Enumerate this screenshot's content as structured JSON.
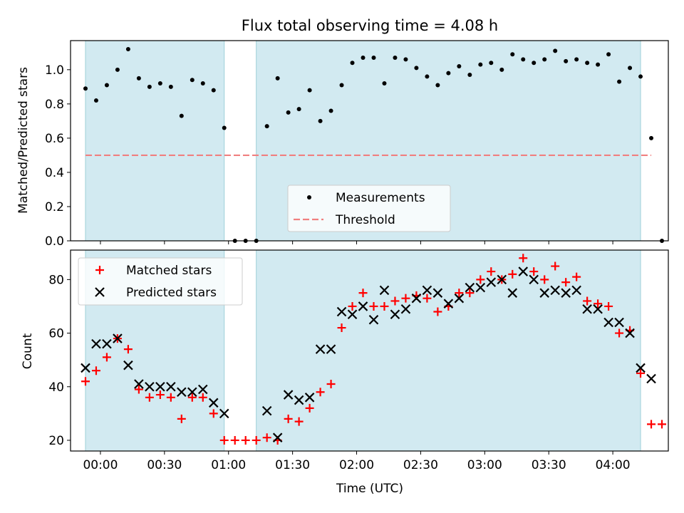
{
  "chart_data": [
    {
      "type": "scatter",
      "title": "Flux total observing time = 4.08 h",
      "xlabel": "",
      "ylabel": "Matched/Predicted stars",
      "xlim": [
        "23:46",
        "04:26"
      ],
      "ylim": [
        0,
        1.17
      ],
      "x_ticks": [
        "00:00",
        "00:30",
        "01:00",
        "01:30",
        "02:00",
        "02:30",
        "03:00",
        "03:30",
        "04:00"
      ],
      "y_ticks": [
        "0.0",
        "0.2",
        "0.4",
        "0.6",
        "0.8",
        "1.0"
      ],
      "shaded_intervals": [
        [
          "23:53",
          "00:58"
        ],
        [
          "01:13",
          "04:13"
        ]
      ],
      "shade_color": "#add8e6",
      "legend": {
        "position": "lower-center",
        "entries": [
          "Measurements",
          "Threshold"
        ]
      },
      "series": [
        {
          "name": "Measurements",
          "marker": "dot",
          "color": "#000000",
          "points": [
            [
              "23:53",
              0.89
            ],
            [
              "23:58",
              0.82
            ],
            [
              "00:03",
              0.91
            ],
            [
              "00:08",
              1.0
            ],
            [
              "00:13",
              1.12
            ],
            [
              "00:18",
              0.95
            ],
            [
              "00:23",
              0.9
            ],
            [
              "00:28",
              0.92
            ],
            [
              "00:33",
              0.9
            ],
            [
              "00:38",
              0.73
            ],
            [
              "00:43",
              0.94
            ],
            [
              "00:48",
              0.92
            ],
            [
              "00:53",
              0.88
            ],
            [
              "00:58",
              0.66
            ],
            [
              "01:03",
              0.0
            ],
            [
              "01:08",
              0.0
            ],
            [
              "01:13",
              0.0
            ],
            [
              "01:18",
              0.67
            ],
            [
              "01:23",
              0.95
            ],
            [
              "01:28",
              0.75
            ],
            [
              "01:33",
              0.77
            ],
            [
              "01:38",
              0.88
            ],
            [
              "01:43",
              0.7
            ],
            [
              "01:48",
              0.76
            ],
            [
              "01:53",
              0.91
            ],
            [
              "01:58",
              1.04
            ],
            [
              "02:03",
              1.07
            ],
            [
              "02:08",
              1.07
            ],
            [
              "02:13",
              0.92
            ],
            [
              "02:18",
              1.07
            ],
            [
              "02:23",
              1.06
            ],
            [
              "02:28",
              1.01
            ],
            [
              "02:33",
              0.96
            ],
            [
              "02:38",
              0.91
            ],
            [
              "02:43",
              0.98
            ],
            [
              "02:48",
              1.02
            ],
            [
              "02:53",
              0.97
            ],
            [
              "02:58",
              1.03
            ],
            [
              "03:03",
              1.04
            ],
            [
              "03:08",
              1.0
            ],
            [
              "03:13",
              1.09
            ],
            [
              "03:18",
              1.06
            ],
            [
              "03:23",
              1.04
            ],
            [
              "03:28",
              1.06
            ],
            [
              "03:33",
              1.11
            ],
            [
              "03:38",
              1.05
            ],
            [
              "03:43",
              1.06
            ],
            [
              "03:48",
              1.04
            ],
            [
              "03:53",
              1.03
            ],
            [
              "03:58",
              1.09
            ],
            [
              "04:03",
              0.93
            ],
            [
              "04:08",
              1.01
            ],
            [
              "04:13",
              0.96
            ],
            [
              "04:18",
              0.6
            ],
            [
              "04:23",
              0.0
            ]
          ]
        },
        {
          "name": "Threshold",
          "line_style": "dashed",
          "color": "#f08080",
          "points": [
            [
              "23:53",
              0.5
            ],
            [
              "04:18",
              0.5
            ]
          ]
        }
      ]
    },
    {
      "type": "scatter",
      "title": "",
      "xlabel": "Time (UTC)",
      "ylabel": "Count",
      "xlim": [
        "23:46",
        "04:26"
      ],
      "ylim": [
        16,
        91
      ],
      "x_ticks": [
        "00:00",
        "00:30",
        "01:00",
        "01:30",
        "02:00",
        "02:30",
        "03:00",
        "03:30",
        "04:00"
      ],
      "y_ticks": [
        "20",
        "40",
        "60",
        "80"
      ],
      "shaded_intervals": [
        [
          "23:53",
          "00:58"
        ],
        [
          "01:13",
          "04:13"
        ]
      ],
      "shade_color": "#add8e6",
      "legend": {
        "position": "top-left",
        "entries": [
          "Matched stars",
          "Predicted stars"
        ]
      },
      "series": [
        {
          "name": "Matched stars",
          "marker": "plus",
          "color": "#ff0000",
          "points": [
            [
              "23:53",
              42
            ],
            [
              "23:58",
              46
            ],
            [
              "00:03",
              51
            ],
            [
              "00:08",
              58
            ],
            [
              "00:13",
              54
            ],
            [
              "00:18",
              39
            ],
            [
              "00:23",
              36
            ],
            [
              "00:28",
              37
            ],
            [
              "00:33",
              36
            ],
            [
              "00:38",
              28
            ],
            [
              "00:43",
              36
            ],
            [
              "00:48",
              36
            ],
            [
              "00:53",
              30
            ],
            [
              "00:58",
              20
            ],
            [
              "01:03",
              20
            ],
            [
              "01:08",
              20
            ],
            [
              "01:13",
              20
            ],
            [
              "01:18",
              21
            ],
            [
              "01:23",
              20
            ],
            [
              "01:28",
              28
            ],
            [
              "01:33",
              27
            ],
            [
              "01:38",
              32
            ],
            [
              "01:43",
              38
            ],
            [
              "01:48",
              41
            ],
            [
              "01:53",
              62
            ],
            [
              "01:58",
              70
            ],
            [
              "02:03",
              75
            ],
            [
              "02:08",
              70
            ],
            [
              "02:13",
              70
            ],
            [
              "02:18",
              72
            ],
            [
              "02:23",
              73
            ],
            [
              "02:28",
              74
            ],
            [
              "02:33",
              73
            ],
            [
              "02:38",
              68
            ],
            [
              "02:43",
              70
            ],
            [
              "02:48",
              75
            ],
            [
              "02:53",
              75
            ],
            [
              "02:58",
              80
            ],
            [
              "03:03",
              83
            ],
            [
              "03:08",
              80
            ],
            [
              "03:13",
              82
            ],
            [
              "03:18",
              88
            ],
            [
              "03:23",
              83
            ],
            [
              "03:28",
              80
            ],
            [
              "03:33",
              85
            ],
            [
              "03:38",
              79
            ],
            [
              "03:43",
              81
            ],
            [
              "03:48",
              72
            ],
            [
              "03:53",
              71
            ],
            [
              "03:58",
              70
            ],
            [
              "04:03",
              60
            ],
            [
              "04:08",
              61
            ],
            [
              "04:13",
              45
            ],
            [
              "04:18",
              26
            ],
            [
              "04:23",
              26
            ]
          ]
        },
        {
          "name": "Predicted stars",
          "marker": "x",
          "color": "#000000",
          "points": [
            [
              "23:53",
              47
            ],
            [
              "23:58",
              56
            ],
            [
              "00:03",
              56
            ],
            [
              "00:08",
              58
            ],
            [
              "00:13",
              48
            ],
            [
              "00:18",
              41
            ],
            [
              "00:23",
              40
            ],
            [
              "00:28",
              40
            ],
            [
              "00:33",
              40
            ],
            [
              "00:38",
              38
            ],
            [
              "00:43",
              38
            ],
            [
              "00:48",
              39
            ],
            [
              "00:53",
              34
            ],
            [
              "00:58",
              30
            ],
            [
              "01:18",
              31
            ],
            [
              "01:23",
              21
            ],
            [
              "01:28",
              37
            ],
            [
              "01:33",
              35
            ],
            [
              "01:38",
              36
            ],
            [
              "01:43",
              54
            ],
            [
              "01:48",
              54
            ],
            [
              "01:53",
              68
            ],
            [
              "01:58",
              67
            ],
            [
              "02:03",
              70
            ],
            [
              "02:08",
              65
            ],
            [
              "02:13",
              76
            ],
            [
              "02:18",
              67
            ],
            [
              "02:23",
              69
            ],
            [
              "02:28",
              73
            ],
            [
              "02:33",
              76
            ],
            [
              "02:38",
              75
            ],
            [
              "02:43",
              71
            ],
            [
              "02:48",
              73
            ],
            [
              "02:53",
              77
            ],
            [
              "02:58",
              77
            ],
            [
              "03:03",
              79
            ],
            [
              "03:08",
              80
            ],
            [
              "03:13",
              75
            ],
            [
              "03:18",
              83
            ],
            [
              "03:23",
              80
            ],
            [
              "03:28",
              75
            ],
            [
              "03:33",
              76
            ],
            [
              "03:38",
              75
            ],
            [
              "03:43",
              76
            ],
            [
              "03:48",
              69
            ],
            [
              "03:53",
              69
            ],
            [
              "03:58",
              64
            ],
            [
              "04:03",
              64
            ],
            [
              "04:08",
              60
            ],
            [
              "04:13",
              47
            ],
            [
              "04:18",
              43
            ]
          ]
        }
      ]
    }
  ]
}
